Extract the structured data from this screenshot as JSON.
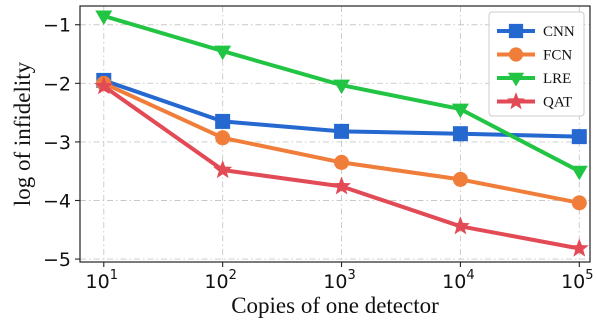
{
  "chart_data": {
    "type": "line",
    "title": "",
    "xlabel": "Copies of one detector",
    "ylabel": "log of infidelity",
    "x_scale": "log",
    "x": [
      10,
      100,
      1000,
      10000,
      100000
    ],
    "x_tick_labels": [
      {
        "base": "10",
        "exp": "1"
      },
      {
        "base": "10",
        "exp": "2"
      },
      {
        "base": "10",
        "exp": "3"
      },
      {
        "base": "10",
        "exp": "4"
      },
      {
        "base": "10",
        "exp": "5"
      }
    ],
    "y_ticks": [
      -5,
      -4,
      -3,
      -2,
      -1
    ],
    "y_tick_labels": [
      "−5",
      "−4",
      "−3",
      "−2",
      "−1"
    ],
    "ylim": [
      -5.05,
      -0.68
    ],
    "grid": true,
    "legend_position": "top-right",
    "series": [
      {
        "name": "CNN",
        "color": "#2468d0",
        "marker": "square",
        "values": [
          -1.95,
          -2.65,
          -2.82,
          -2.86,
          -2.91
        ]
      },
      {
        "name": "FCN",
        "color": "#f07e3a",
        "marker": "circle",
        "values": [
          -2.0,
          -2.93,
          -3.35,
          -3.64,
          -4.04
        ]
      },
      {
        "name": "LRE",
        "color": "#22c444",
        "marker": "triangle",
        "values": [
          -0.85,
          -1.45,
          -2.03,
          -2.44,
          -3.5
        ]
      },
      {
        "name": "QAT",
        "color": "#e24a55",
        "marker": "star",
        "values": [
          -2.05,
          -3.48,
          -3.76,
          -4.44,
          -4.82
        ]
      }
    ]
  }
}
